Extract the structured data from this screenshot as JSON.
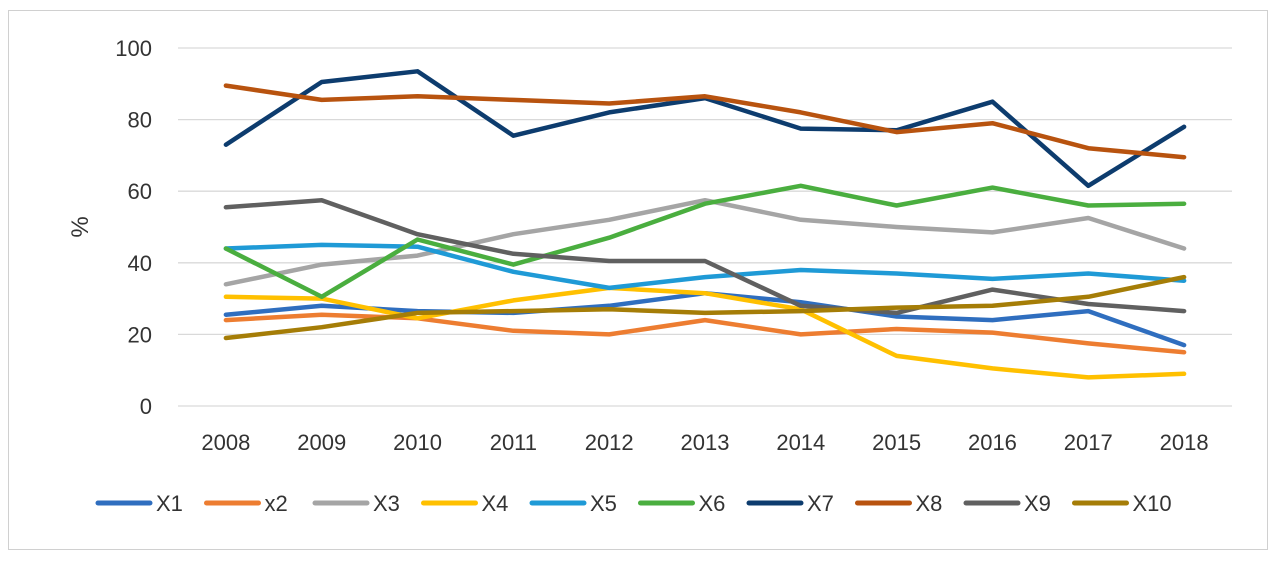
{
  "chart_data": {
    "type": "line",
    "title": "",
    "xlabel": "",
    "ylabel": "%",
    "ylim": [
      0,
      100
    ],
    "yticks": [
      0,
      20,
      40,
      60,
      80,
      100
    ],
    "grid": "horizontal",
    "legend_position": "bottom",
    "categories": [
      "2008",
      "2009",
      "2010",
      "2011",
      "2012",
      "2013",
      "2014",
      "2015",
      "2016",
      "2017",
      "2018"
    ],
    "series": [
      {
        "name": "X1",
        "color": "#2f6ebf",
        "values": [
          25.5,
          28,
          26.5,
          26,
          28,
          31.5,
          29,
          25,
          24,
          26.5,
          17
        ]
      },
      {
        "name": "x2",
        "color": "#ed7d31",
        "values": [
          24,
          25.5,
          24.5,
          21,
          20,
          24,
          20,
          21.5,
          20.5,
          17.5,
          15
        ]
      },
      {
        "name": "X3",
        "color": "#a5a5a5",
        "values": [
          34,
          39.5,
          42,
          48,
          52,
          57.5,
          52,
          50,
          48.5,
          52.5,
          44
        ]
      },
      {
        "name": "X4",
        "color": "#ffc000",
        "values": [
          30.5,
          30,
          24.5,
          29.5,
          33,
          31.5,
          27,
          14,
          10.5,
          8,
          9
        ]
      },
      {
        "name": "X5",
        "color": "#1f9ad6",
        "values": [
          44,
          45,
          44.5,
          37.5,
          33,
          36,
          38,
          37,
          35.5,
          37,
          35
        ]
      },
      {
        "name": "X6",
        "color": "#4aae3f",
        "values": [
          44,
          30.5,
          46.5,
          39.5,
          47,
          56.5,
          61.5,
          56,
          61,
          56,
          56.5
        ]
      },
      {
        "name": "X7",
        "color": "#0d3c6e",
        "values": [
          73,
          90.5,
          93.5,
          75.5,
          82,
          86,
          77.5,
          77,
          85,
          61.5,
          78
        ]
      },
      {
        "name": "X8",
        "color": "#b8530f",
        "values": [
          89.5,
          85.5,
          86.5,
          85.5,
          84.5,
          86.5,
          82,
          76.5,
          79,
          72,
          69.5
        ]
      },
      {
        "name": "X9",
        "color": "#606060",
        "values": [
          55.5,
          57.5,
          48,
          42.5,
          40.5,
          40.5,
          28,
          26,
          32.5,
          28.5,
          26.5
        ]
      },
      {
        "name": "X10",
        "color": "#a57d07",
        "values": [
          19,
          22,
          26,
          26.5,
          27,
          26,
          26.5,
          27.5,
          28,
          30.5,
          36
        ]
      }
    ]
  }
}
